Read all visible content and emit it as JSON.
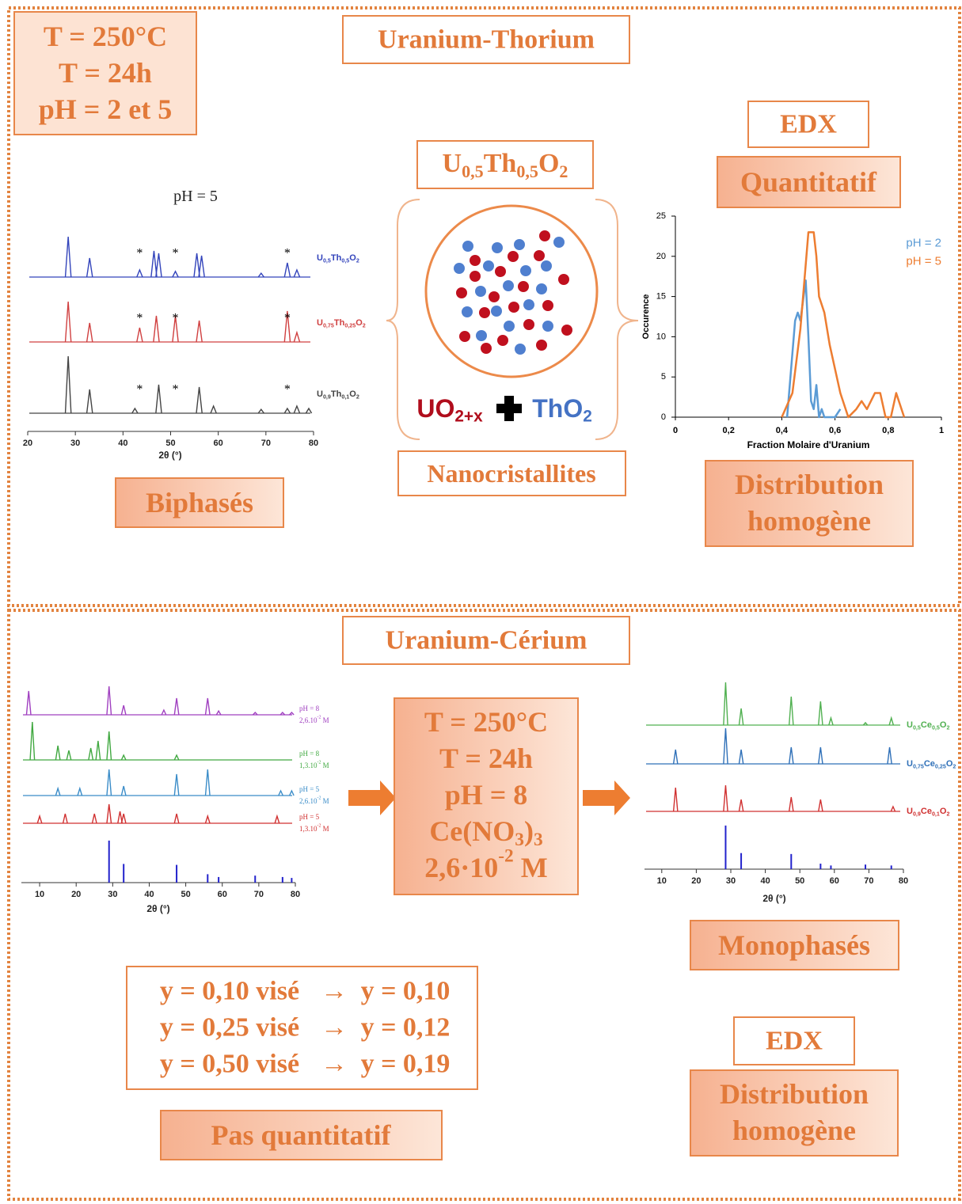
{
  "top": {
    "conditions": [
      "T = 250°C",
      "T = 24h",
      "pH = 2 et 5"
    ],
    "title": "Uranium-Thorium",
    "xrd": {
      "type": "spectrum",
      "title": "pH = 5",
      "xlabel": "2θ (°)",
      "xlim": [
        20,
        80
      ],
      "xticks": [
        20,
        30,
        40,
        50,
        60,
        70,
        80
      ],
      "star": "*",
      "series": [
        {
          "name": [
            {
              "text": "U"
            },
            {
              "text": "0,5",
              "sub": true
            },
            {
              "text": "Th"
            },
            {
              "text": "0,5",
              "sub": true
            },
            {
              "text": "O"
            },
            {
              "text": "2",
              "sub": true
            }
          ],
          "color": "#3344bb",
          "x": [
            28.5,
            33,
            43.5,
            46.5,
            47.5,
            51,
            55.5,
            56.5,
            69,
            74.5,
            76.5
          ],
          "values": [
            85,
            40,
            15,
            55,
            50,
            12,
            50,
            45,
            8,
            30,
            15
          ],
          "stars": [
            43.5,
            51,
            74.5
          ]
        },
        {
          "name": [
            {
              "text": "U"
            },
            {
              "text": "0,75",
              "sub": true
            },
            {
              "text": "Th"
            },
            {
              "text": "0,25",
              "sub": true
            },
            {
              "text": "O"
            },
            {
              "text": "2",
              "sub": true
            }
          ],
          "color": "#d04040",
          "x": [
            28.5,
            33,
            43.5,
            47,
            51,
            56,
            74.5,
            76.5
          ],
          "values": [
            85,
            40,
            30,
            55,
            55,
            45,
            65,
            20
          ],
          "stars": [
            43.5,
            51,
            74.5
          ]
        },
        {
          "name": [
            {
              "text": "U"
            },
            {
              "text": "0,9",
              "sub": true
            },
            {
              "text": "Th"
            },
            {
              "text": "0,1",
              "sub": true
            },
            {
              "text": "O"
            },
            {
              "text": "2",
              "sub": true
            }
          ],
          "color": "#444444",
          "x": [
            28.5,
            33,
            42.5,
            47.5,
            56,
            59,
            69,
            74.5,
            76.5,
            79
          ],
          "values": [
            120,
            50,
            10,
            60,
            55,
            15,
            8,
            10,
            15,
            10
          ],
          "stars": [
            43.5,
            51,
            74.5
          ]
        }
      ]
    },
    "formula": [
      {
        "text": "U"
      },
      {
        "text": "0,5",
        "sub": true
      },
      {
        "text": "Th"
      },
      {
        "text": "0,5",
        "sub": true
      },
      {
        "text": "O"
      },
      {
        "text": "2",
        "sub": true
      }
    ],
    "phase_u": [
      {
        "text": "UO"
      },
      {
        "text": "2+x",
        "sub": true
      }
    ],
    "phase_th": [
      {
        "text": "ThO"
      },
      {
        "text": "2",
        "sub": true
      }
    ],
    "nano": "Nanocristallites",
    "xrd_result": "Biphasés",
    "edx": "EDX",
    "edx_result": "Quantitatif",
    "edx_chart": {
      "type": "line",
      "xlabel": "Fraction Molaire d'Uranium",
      "ylabel": "Occurence",
      "legend": "upper right",
      "xlim": [
        0,
        1
      ],
      "ylim": [
        0,
        25
      ],
      "xticks": [
        0,
        {
          "value": 0.2,
          "label": "0,2"
        },
        {
          "value": 0.4,
          "label": "0,4"
        },
        {
          "value": 0.6,
          "label": "0,6"
        },
        {
          "value": 0.8,
          "label": "0,8"
        },
        1
      ],
      "yticks": [
        0,
        5,
        10,
        15,
        20,
        25
      ],
      "series": [
        {
          "name": "pH = 2",
          "color": "#5b9bd5",
          "x": [
            0.42,
            0.45,
            0.46,
            0.47,
            0.49,
            0.5,
            0.51,
            0.52,
            0.53,
            0.54,
            0.55,
            0.56,
            0.6,
            0.62
          ],
          "values": [
            0,
            12,
            13,
            12,
            17,
            10,
            2,
            1,
            4,
            0,
            1,
            0,
            0,
            1
          ]
        },
        {
          "name": "pH = 5",
          "color": "#ed7d31",
          "x": [
            0.4,
            0.44,
            0.47,
            0.5,
            0.52,
            0.53,
            0.54,
            0.56,
            0.58,
            0.62,
            0.65,
            0.68,
            0.7,
            0.72,
            0.75,
            0.77,
            0.79,
            0.81,
            0.83,
            0.86
          ],
          "values": [
            0,
            3,
            11,
            23,
            23,
            20,
            15,
            13,
            9,
            3,
            0,
            1,
            2,
            1,
            3,
            3,
            0,
            0,
            3,
            0
          ]
        }
      ]
    },
    "distribution": [
      "Distribution",
      "homogène"
    ]
  },
  "bottom": {
    "title": "Uranium-Cérium",
    "xrd_left": {
      "type": "spectrum",
      "xlabel": "2θ (°)",
      "xlim": [
        5,
        80
      ],
      "xticks": [
        10,
        20,
        30,
        40,
        50,
        60,
        70,
        80
      ],
      "series": [
        {
          "name": "pH = 8",
          "concentration": [
            {
              "text": "2,6.10"
            },
            {
              "text": "-2",
              "sup": true
            },
            {
              "text": " M"
            }
          ],
          "color": "#a040c0",
          "x": [
            7,
            29,
            33,
            44,
            47.5,
            56,
            59,
            69,
            76.5,
            79
          ],
          "values": [
            50,
            60,
            20,
            10,
            35,
            35,
            8,
            5,
            5,
            5
          ]
        },
        {
          "name": "pH = 8",
          "concentration": [
            {
              "text": "1,3.10"
            },
            {
              "text": "-2",
              "sup": true
            },
            {
              "text": " M"
            }
          ],
          "color": "#40a840",
          "x": [
            8,
            15,
            18,
            24,
            26,
            29,
            33,
            47.5
          ],
          "values": [
            80,
            30,
            20,
            25,
            40,
            60,
            10,
            10
          ]
        },
        {
          "name": "pH = 5",
          "concentration": [
            {
              "text": "2,6.10"
            },
            {
              "text": "-2",
              "sup": true
            },
            {
              "text": " M"
            }
          ],
          "color": "#3a8cc8",
          "x": [
            15,
            21,
            29,
            33,
            47.5,
            56,
            76,
            79
          ],
          "values": [
            15,
            15,
            55,
            20,
            45,
            55,
            10,
            10
          ]
        },
        {
          "name": "pH = 5",
          "concentration": [
            {
              "text": "1,3.10"
            },
            {
              "text": "-2",
              "sup": true
            },
            {
              "text": " M"
            }
          ],
          "color": "#d03030",
          "x": [
            10,
            17,
            25,
            29,
            32,
            33,
            47.5,
            56,
            75
          ],
          "values": [
            15,
            20,
            20,
            40,
            25,
            20,
            20,
            15,
            15
          ]
        },
        {
          "color": "#2222cc",
          "stick": true,
          "x": [
            29,
            33,
            47.5,
            56,
            59,
            69,
            76.5,
            79
          ],
          "values": [
            90,
            40,
            38,
            18,
            12,
            15,
            12,
            10
          ]
        }
      ]
    },
    "conditions": [
      "T = 250°C",
      "T = 24h",
      "pH = 8"
    ],
    "salt": [
      {
        "text": "Ce(NO"
      },
      {
        "text": "3",
        "sub": true
      },
      {
        "text": ")"
      },
      {
        "text": "3",
        "sub": true
      }
    ],
    "concentration": [
      {
        "text": "2,6·10"
      },
      {
        "text": "-2",
        "sup": true
      },
      {
        "text": " M"
      }
    ],
    "xrd_right": {
      "type": "spectrum",
      "xlabel": "2θ (°)",
      "xlim": [
        5,
        80
      ],
      "xticks": [
        10,
        20,
        30,
        40,
        50,
        60,
        70,
        80
      ],
      "series": [
        {
          "name": [
            {
              "text": "U"
            },
            {
              "text": "0,5",
              "sub": true
            },
            {
              "text": "Ce"
            },
            {
              "text": "0,5",
              "sub": true
            },
            {
              "text": "O"
            },
            {
              "text": "2",
              "sub": true
            }
          ],
          "color": "#50b050",
          "x": [
            28.5,
            33,
            47.5,
            56,
            59,
            69,
            76.5
          ],
          "values": [
            90,
            35,
            60,
            50,
            15,
            5,
            15
          ]
        },
        {
          "name": [
            {
              "text": "U"
            },
            {
              "text": "0,75",
              "sub": true
            },
            {
              "text": "Ce"
            },
            {
              "text": "0,25",
              "sub": true
            },
            {
              "text": "O"
            },
            {
              "text": "2",
              "sub": true
            }
          ],
          "color": "#2f70b8",
          "x": [
            14,
            28.5,
            33,
            47.5,
            56,
            76
          ],
          "values": [
            30,
            75,
            30,
            35,
            35,
            35
          ]
        },
        {
          "name": [
            {
              "text": "U"
            },
            {
              "text": "0,9",
              "sub": true
            },
            {
              "text": "Ce"
            },
            {
              "text": "0,1",
              "sub": true
            },
            {
              "text": "O"
            },
            {
              "text": "2",
              "sub": true
            }
          ],
          "color": "#d03030",
          "x": [
            14,
            28.5,
            33,
            47.5,
            56,
            77
          ],
          "values": [
            50,
            55,
            25,
            30,
            25,
            10
          ]
        },
        {
          "color": "#2222cc",
          "stick": true,
          "x": [
            28.5,
            33,
            47.5,
            56,
            59,
            69,
            76.5
          ],
          "values": [
            95,
            35,
            33,
            12,
            8,
            10,
            8
          ]
        }
      ]
    },
    "xrd_result": "Monophasés",
    "targets": [
      {
        "target": "y = 0,10 visé",
        "arrow": "→",
        "result": "y = 0,10"
      },
      {
        "target": "y = 0,25 visé",
        "arrow": "→",
        "result": "y = 0,12"
      },
      {
        "target": "y = 0,50 visé",
        "arrow": "→",
        "result": "y = 0,19"
      }
    ],
    "target_result": "Pas quantitatif",
    "edx": "EDX",
    "distribution": [
      "Distribution",
      "homogène"
    ]
  }
}
